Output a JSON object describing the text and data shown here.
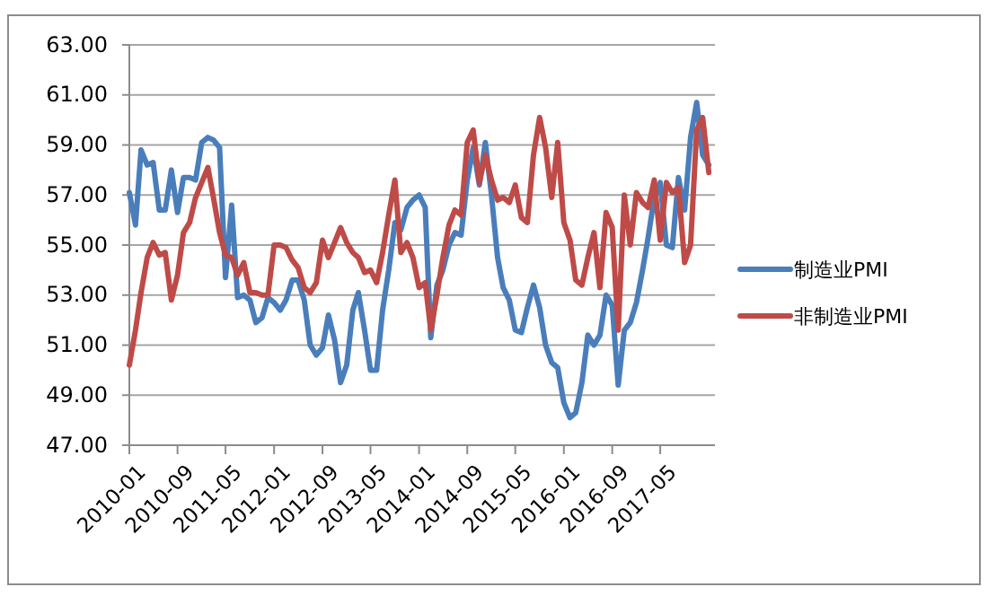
{
  "chart_data": {
    "type": "line",
    "x": [
      "2010-01",
      "2010-02",
      "2010-03",
      "2010-04",
      "2010-05",
      "2010-06",
      "2010-07",
      "2010-08",
      "2010-09",
      "2010-10",
      "2010-11",
      "2010-12",
      "2011-01",
      "2011-02",
      "2011-03",
      "2011-04",
      "2011-05",
      "2011-06",
      "2011-07",
      "2011-08",
      "2011-09",
      "2011-10",
      "2011-11",
      "2011-12",
      "2012-01",
      "2012-02",
      "2012-03",
      "2012-04",
      "2012-05",
      "2012-06",
      "2012-07",
      "2012-08",
      "2012-09",
      "2012-10",
      "2012-11",
      "2012-12",
      "2013-01",
      "2013-02",
      "2013-03",
      "2013-04",
      "2013-05",
      "2013-06",
      "2013-07",
      "2013-08",
      "2013-09",
      "2013-10",
      "2013-11",
      "2013-12",
      "2014-01",
      "2014-02",
      "2014-03",
      "2014-04",
      "2014-05",
      "2014-06",
      "2014-07",
      "2014-08",
      "2014-09",
      "2014-10",
      "2014-11",
      "2014-12",
      "2015-01",
      "2015-02",
      "2015-03",
      "2015-04",
      "2015-05",
      "2015-06",
      "2015-07",
      "2015-08",
      "2015-09",
      "2015-10",
      "2015-11",
      "2015-12",
      "2016-01",
      "2016-02",
      "2016-03",
      "2016-04",
      "2016-05",
      "2016-06",
      "2016-07",
      "2016-08",
      "2016-09",
      "2016-10",
      "2016-11",
      "2016-12",
      "2017-01",
      "2017-02",
      "2017-03",
      "2017-04",
      "2017-05",
      "2017-06",
      "2017-07",
      "2017-08",
      "2017-09",
      "2017-10",
      "2017-11",
      "2017-12",
      "2018-01"
    ],
    "series": [
      {
        "name": "制造业PMI",
        "color": "#4a7ebb",
        "values": [
          57.1,
          55.8,
          58.8,
          58.2,
          58.3,
          56.4,
          56.4,
          58.0,
          56.3,
          57.7,
          57.7,
          57.6,
          59.1,
          59.3,
          59.2,
          58.9,
          53.7,
          56.6,
          52.9,
          53.0,
          52.8,
          51.9,
          52.1,
          52.9,
          52.7,
          52.4,
          52.8,
          53.6,
          53.6,
          52.8,
          51.0,
          50.6,
          50.9,
          52.2,
          51.2,
          49.5,
          50.2,
          52.4,
          53.1,
          51.6,
          50.0,
          50.0,
          52.4,
          54.0,
          55.9,
          55.6,
          56.5,
          56.8,
          57.0,
          56.5,
          51.3,
          53.4,
          54.0,
          55.0,
          55.5,
          55.4,
          57.6,
          58.9,
          57.4,
          59.1,
          57.0,
          54.5,
          53.3,
          52.8,
          51.6,
          51.5,
          52.5,
          53.4,
          52.5,
          51.0,
          50.3,
          50.1,
          48.7,
          48.1,
          48.3,
          49.5,
          51.4,
          51.0,
          51.4,
          53.0,
          52.6,
          49.4,
          51.6,
          51.9,
          52.7,
          54.0,
          55.3,
          56.9,
          57.5,
          55.0,
          54.9,
          57.7,
          56.4,
          59.3,
          60.7,
          58.6,
          58.2
        ]
      },
      {
        "name": "非制造业PMI",
        "color": "#be4b48",
        "values": [
          50.2,
          51.6,
          53.1,
          54.5,
          55.1,
          54.6,
          54.7,
          52.8,
          53.8,
          55.5,
          55.9,
          56.9,
          57.5,
          58.1,
          56.9,
          55.5,
          54.6,
          54.5,
          53.8,
          54.3,
          53.1,
          53.1,
          53.0,
          53.0,
          55.0,
          55.0,
          54.9,
          54.4,
          54.1,
          53.3,
          53.1,
          53.5,
          55.2,
          54.5,
          55.1,
          55.7,
          55.1,
          54.7,
          54.5,
          53.9,
          54.0,
          53.5,
          54.7,
          56.2,
          57.6,
          54.7,
          55.1,
          54.5,
          53.3,
          53.5,
          51.6,
          53.0,
          54.5,
          55.8,
          56.4,
          56.2,
          59.1,
          59.6,
          57.5,
          58.6,
          57.6,
          56.8,
          56.9,
          56.7,
          57.4,
          56.1,
          55.9,
          58.6,
          60.1,
          58.9,
          56.9,
          59.1,
          55.9,
          55.2,
          53.6,
          53.4,
          54.5,
          55.5,
          53.3,
          56.3,
          55.7,
          51.6,
          57.0,
          55.0,
          57.1,
          56.7,
          56.5,
          57.6,
          55.2,
          57.5,
          57.1,
          57.3,
          54.3,
          55.0,
          59.6,
          60.1,
          57.9
        ]
      }
    ],
    "xlim": [
      "2010-01",
      "2018-02"
    ],
    "xticks": [
      "2010-01",
      "2010-09",
      "2011-05",
      "2012-01",
      "2012-09",
      "2013-05",
      "2014-01",
      "2014-09",
      "2015-05",
      "2016-01",
      "2016-09",
      "2017-05"
    ],
    "ylim": [
      47,
      63
    ],
    "yticks": [
      {
        "value": 47,
        "label": "47.00"
      },
      {
        "value": 49,
        "label": "49.00"
      },
      {
        "value": 51,
        "label": "51.00"
      },
      {
        "value": 53,
        "label": "53.00"
      },
      {
        "value": 55,
        "label": "55.00"
      },
      {
        "value": 57,
        "label": "57.00"
      },
      {
        "value": 59,
        "label": "59.00"
      },
      {
        "value": 61,
        "label": "61.00"
      },
      {
        "value": 63,
        "label": "63.00"
      }
    ],
    "grid": "y",
    "legend": "right",
    "marker": "none",
    "line_style": "solid"
  }
}
